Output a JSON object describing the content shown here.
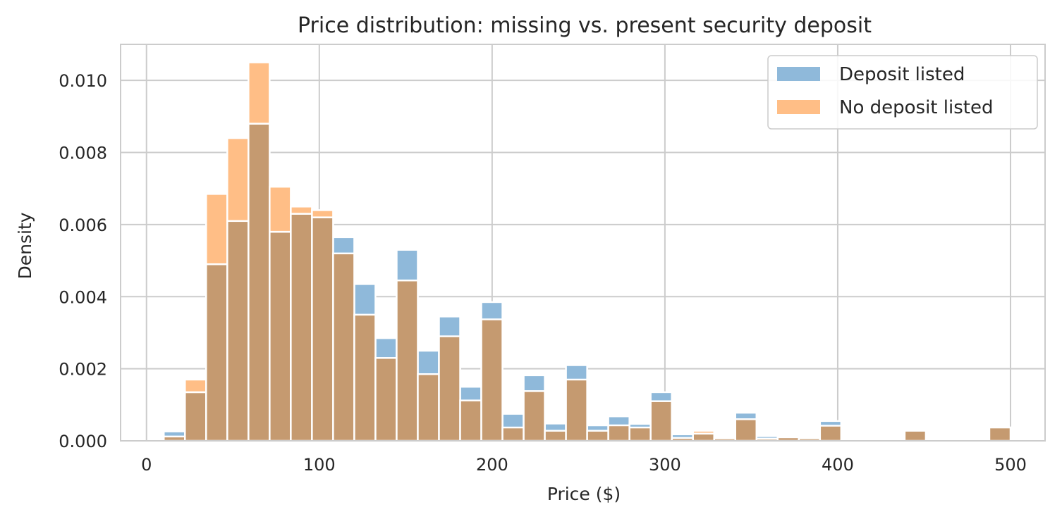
{
  "chart_data": {
    "type": "bar",
    "subtype": "overlaid-histogram",
    "title": "Price distribution: missing vs. present security deposit",
    "xlabel": "Price ($)",
    "ylabel": "Density",
    "xlim": [
      -15,
      520
    ],
    "ylim": [
      0,
      0.011
    ],
    "xticks": [
      0,
      100,
      200,
      300,
      400,
      500
    ],
    "xtick_labels": [
      "0",
      "100",
      "200",
      "300",
      "400",
      "500"
    ],
    "yticks": [
      0,
      0.002,
      0.004,
      0.006,
      0.008,
      0.01
    ],
    "ytick_labels": [
      "0.000",
      "0.002",
      "0.004",
      "0.006",
      "0.008",
      "0.010"
    ],
    "grid": true,
    "legend_position": "top-right",
    "bin_start": 10,
    "bin_width": 12.25,
    "series": [
      {
        "name": "Deposit listed",
        "color": "#8fb9da",
        "values": [
          0.00026,
          0.00135,
          0.0049,
          0.0061,
          0.0088,
          0.0058,
          0.0063,
          0.0062,
          0.00565,
          0.00435,
          0.00285,
          0.0053,
          0.0025,
          0.00345,
          0.0015,
          0.00385,
          0.00075,
          0.00182,
          0.00048,
          0.0021,
          0.00043,
          0.00068,
          0.00047,
          0.00135,
          0.00018,
          0.0002,
          7e-05,
          0.00078,
          0.00013,
          0.0001,
          7e-05,
          0.00055,
          0.0,
          0.0,
          2e-05,
          0.00028,
          0.0,
          0.0,
          0.0,
          0.00037
        ]
      },
      {
        "name": "No deposit listed",
        "color": "#ffbe86",
        "values": [
          0.00012,
          0.0017,
          0.00685,
          0.0084,
          0.0105,
          0.00705,
          0.0065,
          0.0064,
          0.0052,
          0.0035,
          0.0023,
          0.00445,
          0.00185,
          0.0029,
          0.00112,
          0.00337,
          0.00037,
          0.00138,
          0.00028,
          0.0017,
          0.00028,
          0.00043,
          0.00037,
          0.0011,
          8e-05,
          0.00028,
          8e-05,
          0.0006,
          6e-05,
          0.00011,
          7e-05,
          0.00042,
          0.0,
          0.0,
          0.0,
          0.00028,
          0.0,
          0.0,
          0.0,
          0.00037
        ]
      }
    ],
    "overlap_color": "#c59a70"
  }
}
